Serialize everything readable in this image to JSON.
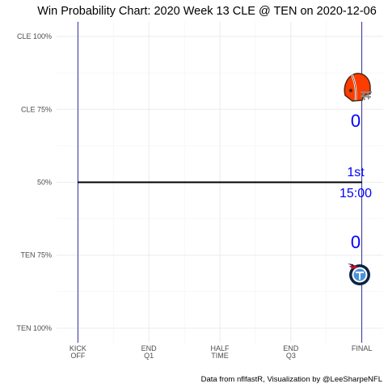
{
  "chart_data": {
    "type": "line",
    "title": "Win Probability Chart: 2020 Week 13 CLE @ TEN on 2020-12-06",
    "caption": "Data from nflfastR, Visualization by @LeeSharpeNFL",
    "xlabel": "",
    "ylabel": "",
    "x_ticks": [
      {
        "value": 0,
        "lines": [
          "KICK",
          "OFF"
        ]
      },
      {
        "value": 15,
        "lines": [
          "END",
          "Q1"
        ]
      },
      {
        "value": 30,
        "lines": [
          "HALF",
          "TIME"
        ]
      },
      {
        "value": 45,
        "lines": [
          "END",
          "Q3"
        ]
      },
      {
        "value": 60,
        "lines": [
          "FINAL"
        ]
      }
    ],
    "y_ticks": [
      {
        "value": 1.0,
        "label": "CLE 100%"
      },
      {
        "value": 0.75,
        "label": "CLE 75%"
      },
      {
        "value": 0.5,
        "label": "50%"
      },
      {
        "value": 0.25,
        "label": "TEN 75%"
      },
      {
        "value": 0.0,
        "label": "TEN 100%"
      }
    ],
    "xlim": [
      -4.5,
      64.5
    ],
    "ylim": [
      -0.05,
      1.05
    ],
    "vlines": [
      0,
      60
    ],
    "vline_color": "#00008b",
    "series": [
      {
        "x": [
          0,
          60
        ],
        "y": [
          0.5,
          0.5
        ],
        "color": "#000000"
      }
    ],
    "grid": true,
    "away_team": {
      "logo": "browns-helmet-icon",
      "score": "0",
      "color": "#ff3c00"
    },
    "home_team": {
      "logo": "titans-logo-icon",
      "score": "0",
      "color": "#0c2340"
    },
    "clock": {
      "quarter": "1st",
      "time": "15:00"
    }
  }
}
